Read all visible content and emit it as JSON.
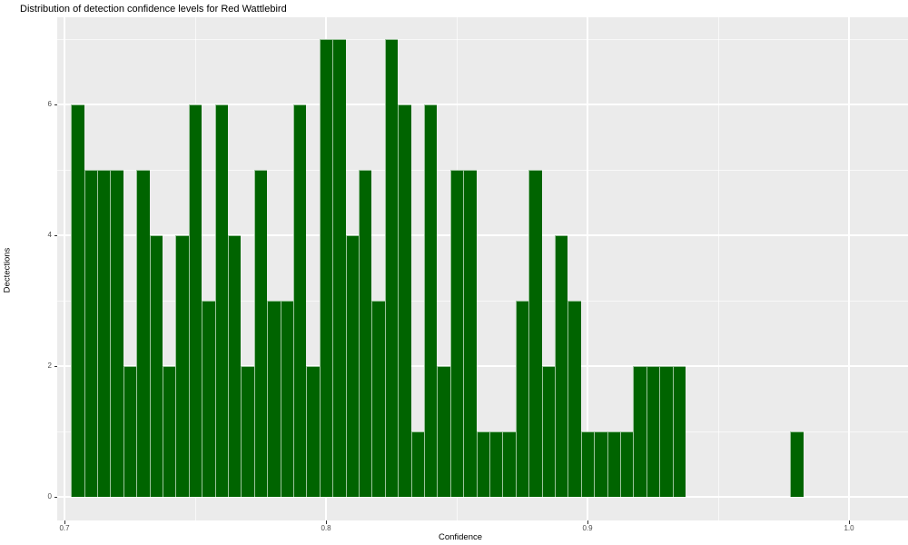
{
  "chart_data": {
    "type": "bar",
    "subtype": "histogram",
    "title": "Distribution of detection confidence levels for Red Wattlebird",
    "xlabel": "Confidence",
    "ylabel": "Dectections",
    "bin_start": 0.7025,
    "bin_width": 0.005,
    "counts": [
      6,
      5,
      5,
      5,
      2,
      5,
      4,
      2,
      4,
      6,
      3,
      6,
      4,
      2,
      5,
      3,
      3,
      6,
      2,
      7,
      7,
      4,
      5,
      3,
      7,
      6,
      1,
      6,
      2,
      5,
      5,
      1,
      1,
      1,
      3,
      5,
      2,
      4,
      3,
      1,
      1,
      1,
      1,
      2,
      2,
      2,
      2,
      0,
      0,
      0,
      0,
      0,
      0,
      0,
      0,
      1
    ],
    "x_ticks": [
      0.7,
      0.8,
      0.9,
      1.0
    ],
    "x_tick_labels": [
      "0.7",
      "0.8",
      "0.9",
      "1.0"
    ],
    "x_minor_breaks": [
      0.75,
      0.85,
      0.95
    ],
    "y_ticks": [
      0,
      2,
      4,
      6
    ],
    "y_tick_labels": [
      "0",
      "2",
      "4",
      "6"
    ],
    "y_minor_breaks": [
      1,
      3,
      5,
      7
    ],
    "xlim": [
      0.697,
      1.021
    ],
    "ylim": [
      0,
      7.35
    ],
    "grid": true,
    "legend_position": "none",
    "colors": {
      "bar_fill": "#006400",
      "bar_edge": "#A3C9A3",
      "panel_background": "#EBEBEB",
      "grid_major": "#FFFFFF",
      "grid_minor": "#F5F5F5",
      "tick_label_color": "#4D4D4D",
      "title_color": "#000000"
    }
  }
}
